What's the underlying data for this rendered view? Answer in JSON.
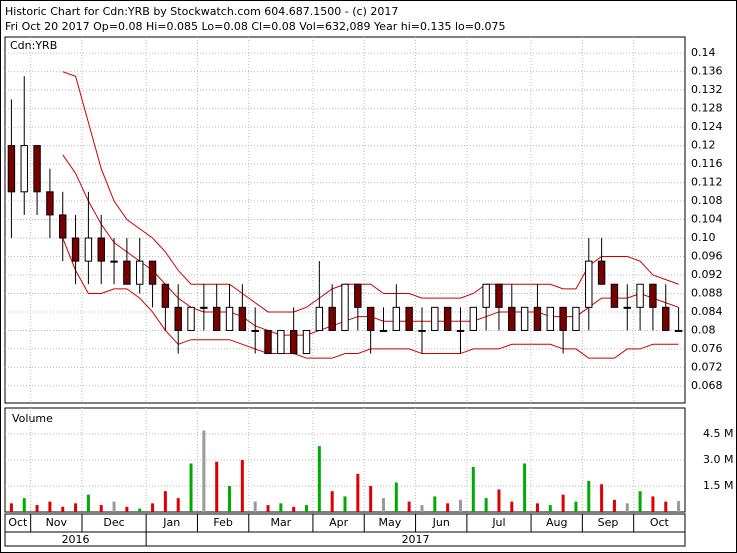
{
  "chart_data": {
    "type": "candlestick",
    "title": "Historic Chart for Cdn:YRB by Stockwatch.com 604.687.1500 - (c) 2017",
    "subtitle": "Fri Oct 20 2017  Op=0.08  Hi=0.085  Lo=0.08  Cl=0.08  Vol=632,089  Year hi=0.135  lo=0.075",
    "symbol": "Cdn:YRB",
    "volume_label": "Volume",
    "categories": [
      "Oct",
      null,
      "Nov",
      null,
      null,
      null,
      "Dec",
      null,
      null,
      null,
      null,
      "Jan",
      null,
      null,
      null,
      "Feb",
      null,
      null,
      null,
      "Mar",
      null,
      null,
      null,
      null,
      "Apr",
      null,
      null,
      null,
      "May",
      null,
      null,
      null,
      "Jun",
      null,
      null,
      null,
      "Jul",
      null,
      null,
      null,
      null,
      "Aug",
      null,
      null,
      null,
      "Sep",
      null,
      null,
      null,
      "Oct",
      null,
      null,
      null
    ],
    "years": [
      "2016",
      "2017"
    ],
    "open": [
      0.12,
      0.11,
      0.12,
      0.11,
      0.105,
      0.1,
      0.095,
      0.1,
      0.095,
      0.095,
      0.09,
      0.095,
      0.09,
      0.085,
      0.08,
      0.085,
      0.085,
      0.08,
      0.085,
      0.08,
      0.08,
      0.075,
      0.08,
      0.075,
      0.08,
      0.085,
      0.08,
      0.09,
      0.085,
      0.08,
      0.08,
      0.085,
      0.08,
      0.08,
      0.085,
      0.08,
      0.08,
      0.085,
      0.09,
      0.085,
      0.08,
      0.085,
      0.08,
      0.085,
      0.08,
      0.085,
      0.095,
      0.09,
      0.085,
      0.085,
      0.09,
      0.085,
      0.08
    ],
    "high": [
      0.13,
      0.135,
      0.12,
      0.115,
      0.11,
      0.105,
      0.11,
      0.105,
      0.1,
      0.1,
      0.1,
      0.095,
      0.09,
      0.09,
      0.085,
      0.09,
      0.09,
      0.09,
      0.09,
      0.085,
      0.08,
      0.08,
      0.085,
      0.08,
      0.095,
      0.09,
      0.09,
      0.09,
      0.085,
      0.085,
      0.09,
      0.085,
      0.085,
      0.085,
      0.085,
      0.085,
      0.085,
      0.09,
      0.09,
      0.09,
      0.085,
      0.09,
      0.085,
      0.085,
      0.085,
      0.1,
      0.1,
      0.09,
      0.09,
      0.09,
      0.09,
      0.09,
      0.085
    ],
    "low": [
      0.1,
      0.105,
      0.105,
      0.1,
      0.095,
      0.09,
      0.09,
      0.09,
      0.09,
      0.09,
      0.088,
      0.085,
      0.08,
      0.075,
      0.08,
      0.08,
      0.08,
      0.08,
      0.08,
      0.075,
      0.075,
      0.075,
      0.075,
      0.075,
      0.08,
      0.08,
      0.08,
      0.08,
      0.075,
      0.08,
      0.08,
      0.08,
      0.075,
      0.08,
      0.08,
      0.075,
      0.08,
      0.08,
      0.08,
      0.08,
      0.08,
      0.08,
      0.08,
      0.075,
      0.08,
      0.08,
      0.09,
      0.085,
      0.08,
      0.08,
      0.08,
      0.08,
      0.08
    ],
    "close": [
      0.11,
      0.12,
      0.11,
      0.105,
      0.1,
      0.095,
      0.1,
      0.095,
      0.095,
      0.09,
      0.095,
      0.09,
      0.085,
      0.08,
      0.085,
      0.085,
      0.08,
      0.085,
      0.08,
      0.08,
      0.075,
      0.08,
      0.075,
      0.08,
      0.085,
      0.08,
      0.09,
      0.085,
      0.08,
      0.08,
      0.085,
      0.08,
      0.08,
      0.085,
      0.08,
      0.08,
      0.085,
      0.09,
      0.085,
      0.08,
      0.085,
      0.08,
      0.085,
      0.08,
      0.085,
      0.095,
      0.09,
      0.085,
      0.085,
      0.09,
      0.085,
      0.08,
      0.08
    ],
    "up_color": "#ffffff",
    "down_color": "#7a0000",
    "series": [
      {
        "name": "Upper band",
        "color": "#cc0000",
        "values": [
          null,
          null,
          null,
          null,
          0.136,
          0.135,
          0.125,
          0.115,
          0.108,
          0.104,
          0.102,
          0.1,
          0.097,
          0.093,
          0.09,
          0.09,
          0.09,
          0.09,
          0.088,
          0.086,
          0.084,
          0.084,
          0.084,
          0.085,
          0.087,
          0.089,
          0.09,
          0.09,
          0.09,
          0.088,
          0.088,
          0.088,
          0.087,
          0.087,
          0.087,
          0.087,
          0.088,
          0.09,
          0.09,
          0.09,
          0.09,
          0.09,
          0.09,
          0.089,
          0.089,
          0.094,
          0.096,
          0.096,
          0.096,
          0.095,
          0.092,
          0.091,
          0.09
        ]
      },
      {
        "name": "Moving average",
        "color": "#cc0000",
        "values": [
          null,
          null,
          null,
          null,
          0.118,
          0.114,
          0.108,
          0.103,
          0.099,
          0.097,
          0.095,
          0.093,
          0.09,
          0.087,
          0.085,
          0.084,
          0.084,
          0.084,
          0.083,
          0.081,
          0.08,
          0.079,
          0.079,
          0.079,
          0.08,
          0.081,
          0.082,
          0.083,
          0.083,
          0.082,
          0.082,
          0.082,
          0.082,
          0.082,
          0.082,
          0.082,
          0.082,
          0.083,
          0.084,
          0.084,
          0.084,
          0.084,
          0.083,
          0.083,
          0.083,
          0.085,
          0.087,
          0.087,
          0.087,
          0.088,
          0.087,
          0.086,
          0.085
        ]
      },
      {
        "name": "Lower band",
        "color": "#cc0000",
        "values": [
          null,
          null,
          null,
          null,
          0.1,
          0.093,
          0.088,
          0.088,
          0.089,
          0.089,
          0.087,
          0.084,
          0.08,
          0.077,
          0.078,
          0.078,
          0.078,
          0.078,
          0.077,
          0.076,
          0.075,
          0.075,
          0.075,
          0.074,
          0.074,
          0.074,
          0.075,
          0.075,
          0.076,
          0.076,
          0.076,
          0.076,
          0.075,
          0.075,
          0.075,
          0.075,
          0.076,
          0.076,
          0.076,
          0.077,
          0.077,
          0.077,
          0.077,
          0.076,
          0.076,
          0.074,
          0.074,
          0.074,
          0.076,
          0.076,
          0.077,
          0.077,
          0.077
        ]
      }
    ],
    "volume": [
      500000,
      800000,
      400000,
      600000,
      300000,
      500000,
      1000000,
      400000,
      600000,
      300000,
      200000,
      500000,
      1200000,
      800000,
      2800000,
      4700000,
      2900000,
      1500000,
      3000000,
      600000,
      400000,
      500000,
      300000,
      400000,
      3800000,
      1200000,
      900000,
      2200000,
      1500000,
      800000,
      1700000,
      600000,
      400000,
      900000,
      500000,
      700000,
      2600000,
      800000,
      1300000,
      600000,
      2800000,
      500000,
      400000,
      1000000,
      600000,
      1800000,
      1600000,
      700000,
      500000,
      1200000,
      900000,
      600000,
      632089
    ],
    "volume_colors": {
      "up": "#00aa00",
      "down": "#dd0000",
      "flat": "#999999"
    },
    "ylim": [
      0.0643,
      0.1435
    ],
    "yticks": [
      0.068,
      0.072,
      0.076,
      0.08,
      0.084,
      0.088,
      0.092,
      0.096,
      {
        "value": 0.1,
        "label": "0.10"
      },
      0.104,
      0.108,
      0.112,
      0.116,
      0.12,
      0.124,
      0.128,
      0.132,
      0.136,
      0.14
    ],
    "y2lim": [
      0,
      6000000
    ],
    "y2ticks": [
      {
        "value": 1500000,
        "label": "1.5 M"
      },
      {
        "value": 3000000,
        "label": "3.0 M"
      },
      {
        "value": 4500000,
        "label": "4.5 M"
      }
    ],
    "grid": true
  }
}
